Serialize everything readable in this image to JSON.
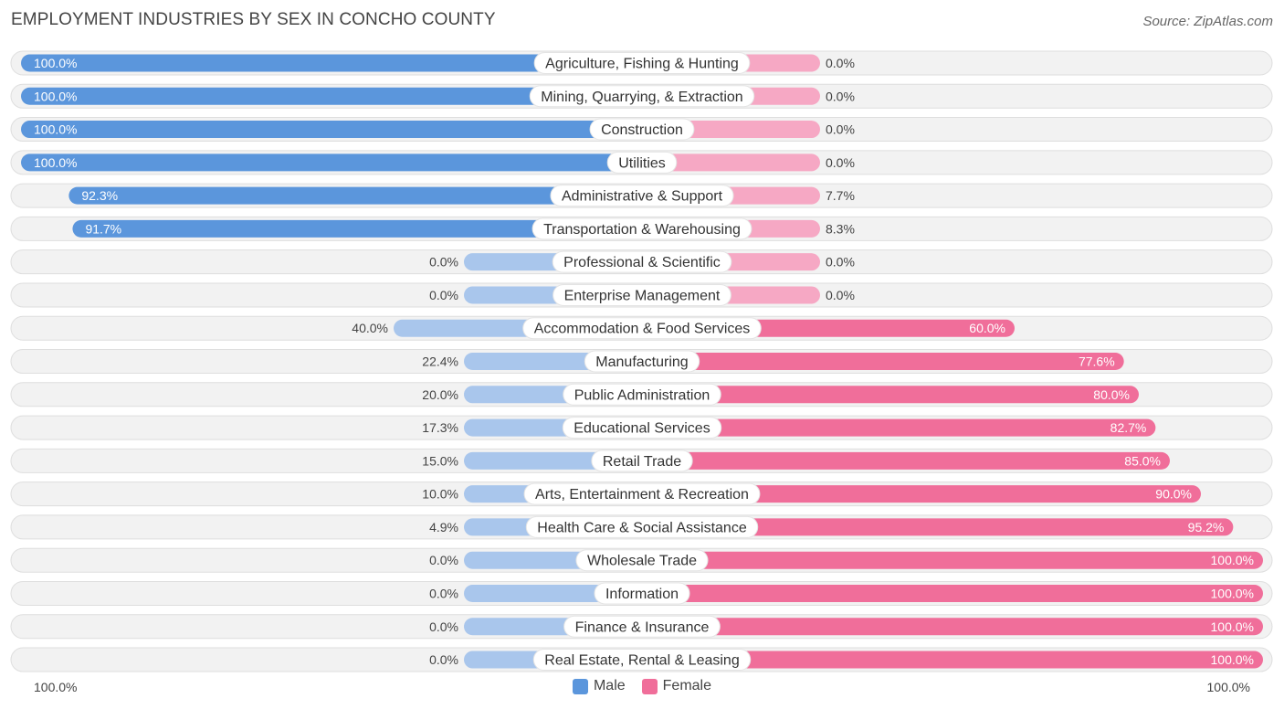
{
  "chart_data": {
    "type": "bar",
    "orientation": "horizontal-diverging",
    "title": "EMPLOYMENT INDUSTRIES BY SEX IN CONCHO COUNTY",
    "source": "Source: ZipAtlas.com",
    "categories": [
      "Agriculture, Fishing & Hunting",
      "Mining, Quarrying, & Extraction",
      "Construction",
      "Utilities",
      "Administrative & Support",
      "Transportation & Warehousing",
      "Professional & Scientific",
      "Enterprise Management",
      "Accommodation & Food Services",
      "Manufacturing",
      "Public Administration",
      "Educational Services",
      "Retail Trade",
      "Arts, Entertainment & Recreation",
      "Health Care & Social Assistance",
      "Wholesale Trade",
      "Information",
      "Finance & Insurance",
      "Real Estate, Rental & Leasing"
    ],
    "series": [
      {
        "name": "Male",
        "values": [
          100.0,
          100.0,
          100.0,
          100.0,
          92.3,
          91.7,
          0.0,
          0.0,
          40.0,
          22.4,
          20.0,
          17.3,
          15.0,
          10.0,
          4.9,
          0.0,
          0.0,
          0.0,
          0.0
        ],
        "labels": [
          "100.0%",
          "100.0%",
          "100.0%",
          "100.0%",
          "92.3%",
          "91.7%",
          "0.0%",
          "0.0%",
          "40.0%",
          "22.4%",
          "20.0%",
          "17.3%",
          "15.0%",
          "10.0%",
          "4.9%",
          "0.0%",
          "0.0%",
          "0.0%",
          "0.0%"
        ]
      },
      {
        "name": "Female",
        "values": [
          0.0,
          0.0,
          0.0,
          0.0,
          7.7,
          8.3,
          0.0,
          0.0,
          60.0,
          77.6,
          80.0,
          82.7,
          85.0,
          90.0,
          95.2,
          100.0,
          100.0,
          100.0,
          100.0
        ],
        "labels": [
          "0.0%",
          "0.0%",
          "0.0%",
          "0.0%",
          "7.7%",
          "8.3%",
          "0.0%",
          "0.0%",
          "60.0%",
          "77.6%",
          "80.0%",
          "82.7%",
          "85.0%",
          "90.0%",
          "95.2%",
          "100.0%",
          "100.0%",
          "100.0%",
          "100.0%"
        ]
      }
    ],
    "xlim": [
      0,
      100
    ],
    "axis_left_label": "100.0%",
    "axis_right_label": "100.0%",
    "legend_position": "bottom-center",
    "colors": {
      "male_strong": "#5b96dc",
      "male_light": "#a9c6ec",
      "female_strong": "#f06e9a",
      "female_light": "#f6a8c4",
      "row_bg": "#f2f2f2",
      "row_border": "#dedede"
    }
  }
}
